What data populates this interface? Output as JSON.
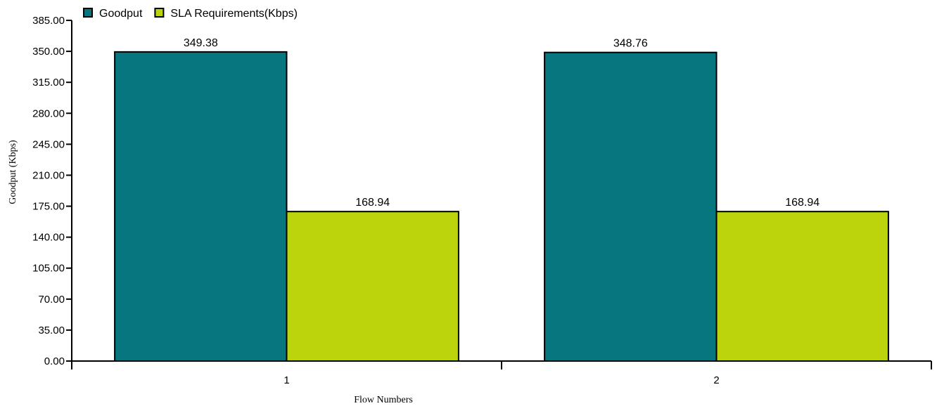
{
  "chart_data": {
    "type": "bar",
    "categories": [
      "1",
      "2"
    ],
    "series": [
      {
        "name": "Goodput",
        "values": [
          349.38,
          348.76
        ],
        "color": "#08767f"
      },
      {
        "name": "SLA Requirements(Kbps)",
        "values": [
          168.94,
          168.94
        ],
        "color": "#bcd40b"
      }
    ],
    "value_labels": [
      [
        "349.38",
        "348.76"
      ],
      [
        "168.94",
        "168.94"
      ]
    ],
    "xlabel": "Flow Numbers",
    "ylabel": "Goodput (Kbps)",
    "ylim": [
      0,
      385
    ],
    "yticks": [
      "0.00",
      "35.00",
      "70.00",
      "105.00",
      "140.00",
      "175.00",
      "210.00",
      "245.00",
      "280.00",
      "315.00",
      "350.00",
      "385.00"
    ],
    "grid": false,
    "legend_position": "top-left"
  }
}
